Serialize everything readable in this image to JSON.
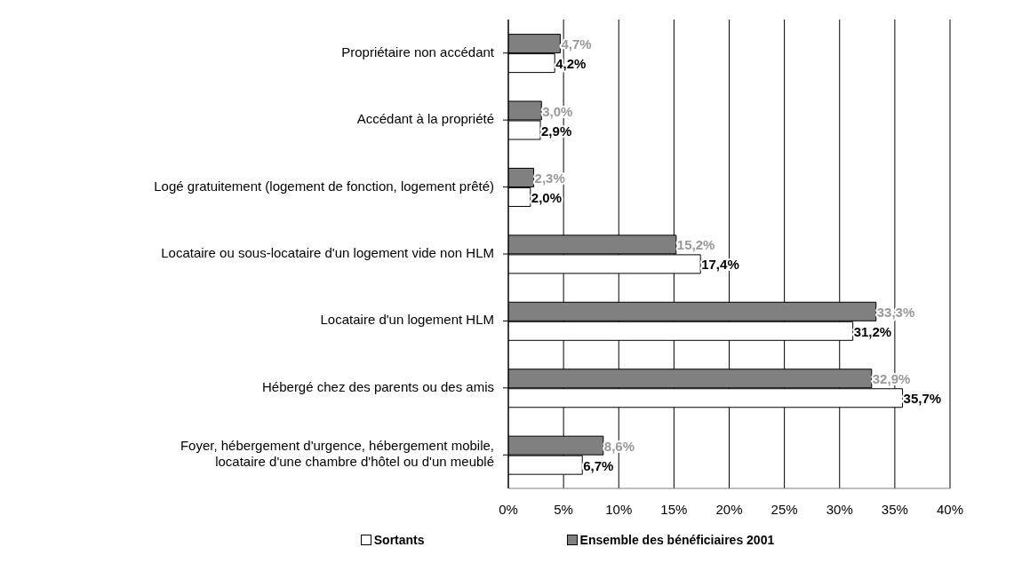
{
  "chart_data": {
    "type": "bar",
    "orientation": "horizontal",
    "categories": [
      "Propriétaire non accédant",
      "Accédant à la propriété",
      "Logé gratuitement (logement de fonction, logement prêté)",
      "Locataire ou sous-locataire d'un logement vide non HLM",
      "Locataire d'un logement HLM",
      "Hébergé chez des parents ou des amis",
      "Foyer, hébergement d'urgence, hébergement mobile, locataire d'une chambre d'hôtel ou d'un meublé"
    ],
    "series": [
      {
        "name": "Ensemble des bénéficiaires 2001",
        "color": "#808080",
        "values": [
          4.7,
          3.0,
          2.3,
          15.2,
          33.3,
          32.9,
          8.6
        ],
        "value_labels": [
          "4,7%",
          "3,0%",
          "2,3%",
          "15,2%",
          "33,3%",
          "32,9%",
          "8,6%"
        ]
      },
      {
        "name": "Sortants",
        "color": "#ffffff",
        "values": [
          4.2,
          2.9,
          2.0,
          17.4,
          31.2,
          35.7,
          6.7
        ],
        "value_labels": [
          "4,2%",
          "2,9%",
          "2,0%",
          "17,4%",
          "31,2%",
          "35,7%",
          "6,7%"
        ]
      }
    ],
    "xlim": [
      0,
      40
    ],
    "xticks": [
      {
        "value": 0,
        "label": "0%"
      },
      {
        "value": 5,
        "label": "5%"
      },
      {
        "value": 10,
        "label": "10%"
      },
      {
        "value": 15,
        "label": "15%"
      },
      {
        "value": 20,
        "label": "20%"
      },
      {
        "value": 25,
        "label": "25%"
      },
      {
        "value": 30,
        "label": "30%"
      },
      {
        "value": 35,
        "label": "35%"
      },
      {
        "value": 40,
        "label": "40%"
      }
    ],
    "grid": "x",
    "legend": "bottom"
  }
}
